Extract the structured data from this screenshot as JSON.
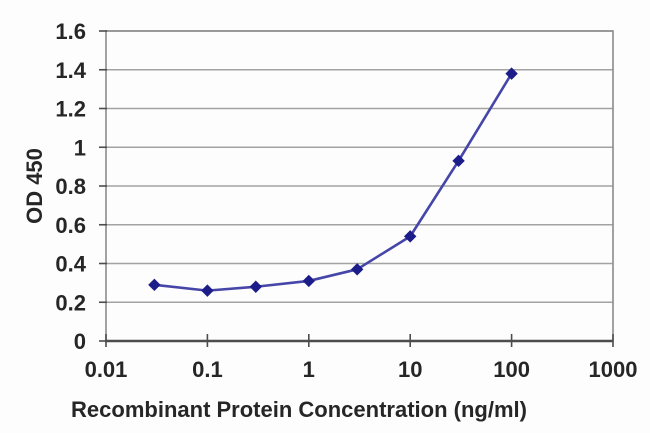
{
  "chart_data": {
    "type": "line",
    "title": "",
    "xlabel": "Recombinant Protein Concentration (ng/ml)",
    "ylabel": "OD 450",
    "x_scale": "log",
    "xlim": [
      0.01,
      1000
    ],
    "ylim": [
      0,
      1.6
    ],
    "x_ticks": [
      0.01,
      0.1,
      1,
      10,
      100,
      1000
    ],
    "x_tick_labels": [
      "0.01",
      "0.1",
      "1",
      "10",
      "100",
      "1000"
    ],
    "y_ticks": [
      0,
      0.2,
      0.4,
      0.6,
      0.8,
      1,
      1.2,
      1.4,
      1.6
    ],
    "y_tick_labels": [
      "0",
      "0.2",
      "0.4",
      "0.6",
      "0.8",
      "1",
      "1.2",
      "1.4",
      "1.6"
    ],
    "grid": "horizontal",
    "legend_position": "none",
    "series": [
      {
        "name": "OD 450",
        "marker": "diamond",
        "x": [
          0.03,
          0.1,
          0.3,
          1,
          3,
          10,
          30,
          100
        ],
        "y": [
          0.29,
          0.26,
          0.28,
          0.31,
          0.37,
          0.54,
          0.93,
          1.38
        ]
      }
    ]
  },
  "colors": {
    "background": "#fdfdfd",
    "gridline": "#a3a3a3",
    "plot_frame": "#8c8c8c",
    "axis": "#4d4d4d",
    "tick": "#4d4d4d",
    "text": "#262626",
    "series_line": "#4646a8",
    "series_marker": "#1d1d8a"
  }
}
